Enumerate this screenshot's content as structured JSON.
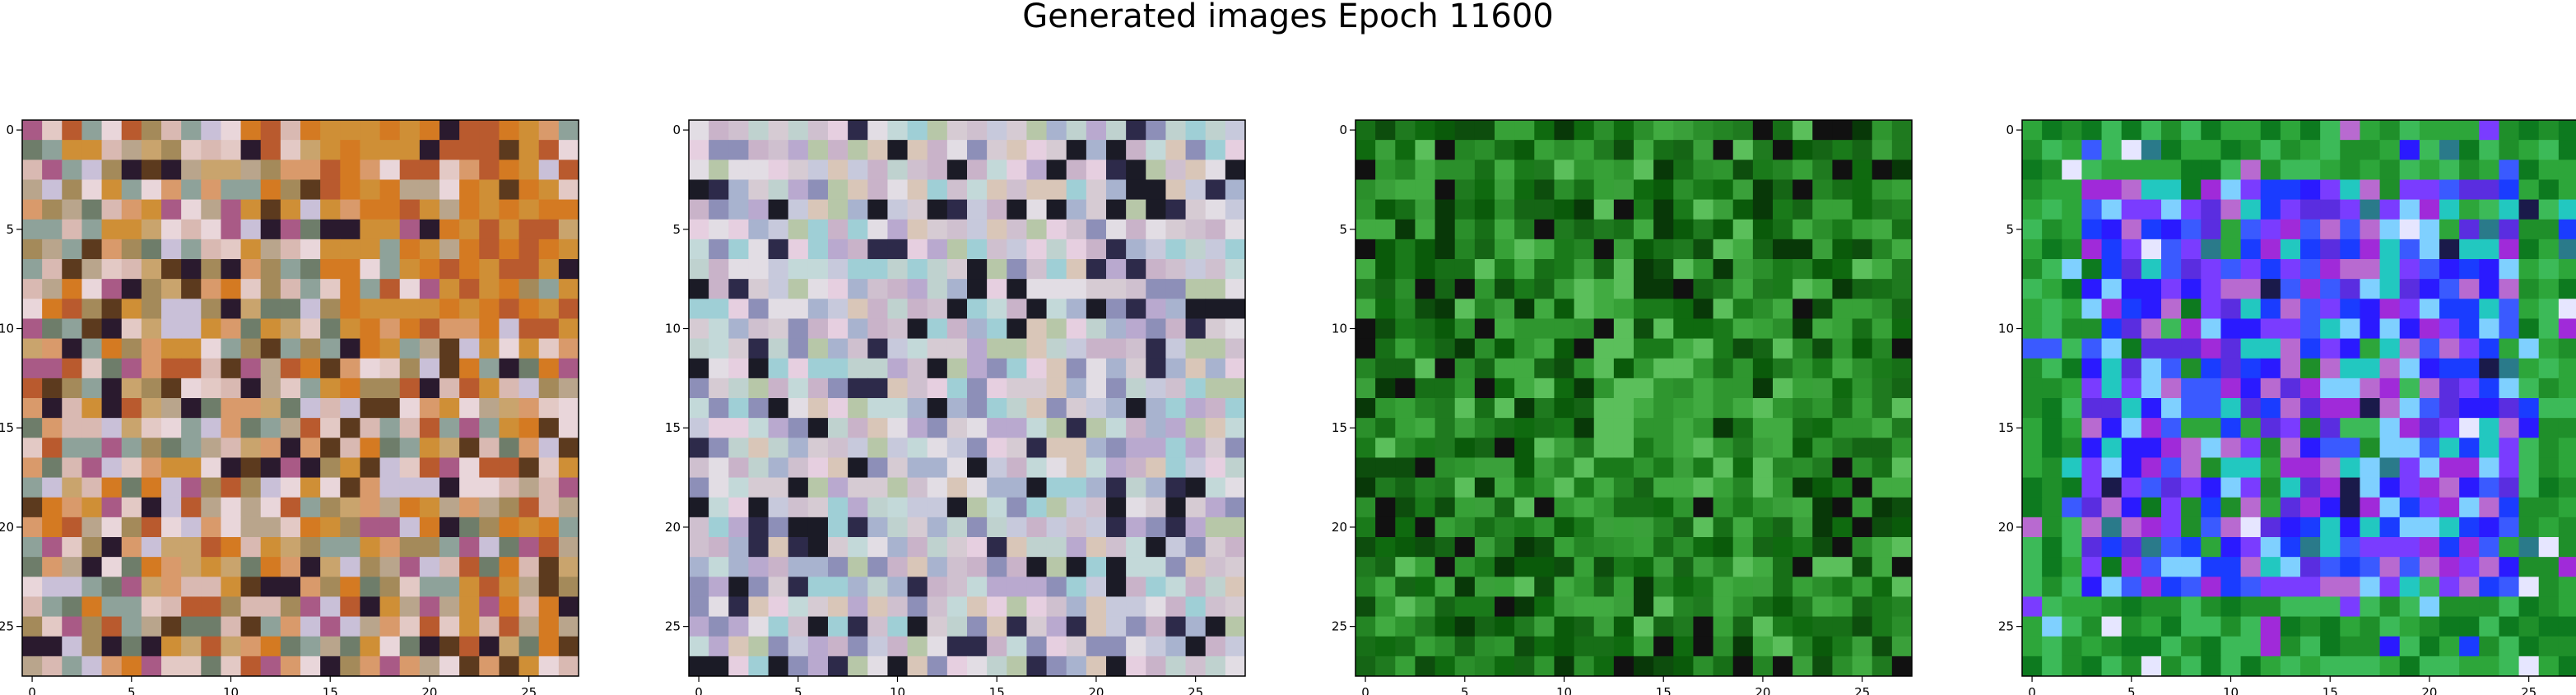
{
  "title": "Generated images Epoch 11600",
  "chart_data": [
    {
      "type": "heatmap",
      "panel": 1,
      "grid": [
        28,
        28
      ],
      "xticks": [
        "0",
        "5",
        "10",
        "15",
        "20",
        "25"
      ],
      "yticks": [
        "0",
        "5",
        "10",
        "15",
        "20",
        "25"
      ],
      "palette": [
        "#d9b9b2",
        "#c9a46d",
        "#d99a6b",
        "#a48a5a",
        "#e3c9c5",
        "#b9a58c",
        "#cf8f36",
        "#d47a22",
        "#b95a2e",
        "#5c3a1e",
        "#8ea29a",
        "#c9c0d8",
        "#6e7d6a",
        "#e9d6da",
        "#a95a86",
        "#2a1a2e"
      ],
      "description": "warm orange/brown pixel noise concentrated top-right, pastel speckles elsewhere"
    },
    {
      "type": "heatmap",
      "panel": 2,
      "grid": [
        28,
        28
      ],
      "xticks": [
        "0",
        "5",
        "10",
        "15",
        "20",
        "25"
      ],
      "yticks": [
        "0",
        "5",
        "10",
        "15",
        "20",
        "25"
      ],
      "palette": [
        "#d6cbd3",
        "#c7c9dc",
        "#e2dde4",
        "#bfd2cf",
        "#cfc0cf",
        "#a8b3cf",
        "#d9c6b8",
        "#c3d9d9",
        "#b9a9cf",
        "#e6cfe0",
        "#8d8fb8",
        "#9fcfd6",
        "#c9b3c9",
        "#b7c7a8",
        "#2d2a4a",
        "#1b1b26"
      ],
      "description": "pale pastel pixel noise with scattered dark pixels"
    },
    {
      "type": "heatmap",
      "panel": 3,
      "grid": [
        28,
        28
      ],
      "xticks": [
        "0",
        "5",
        "10",
        "15",
        "20",
        "25"
      ],
      "yticks": [
        "0",
        "5",
        "10",
        "15",
        "20",
        "25"
      ],
      "palette": [
        "#1f7a1f",
        "#0f6a0f",
        "#2b8f2b",
        "#0a5a0a",
        "#3aa03a",
        "#176f17",
        "#248524",
        "#0d4d0d",
        "#41ab41",
        "#1a7a1a",
        "#2f962f",
        "#5bbf5b",
        "#156515",
        "#37a137",
        "#083808",
        "#111111"
      ],
      "description": "green pixel noise with lighter centre"
    },
    {
      "type": "heatmap",
      "panel": 4,
      "grid": [
        28,
        28
      ],
      "xticks": [
        "0",
        "5",
        "10",
        "15",
        "20",
        "25"
      ],
      "yticks": [
        "0",
        "5",
        "10",
        "15",
        "20",
        "25"
      ],
      "palette": [
        "#1f8f2a",
        "#2da63a",
        "#0d7a1f",
        "#3cba58",
        "#5a2de0",
        "#2a1aff",
        "#7a3cff",
        "#1a3cff",
        "#a02ad9",
        "#3a5aff",
        "#b86ad0",
        "#22c8c0",
        "#7fd0ff",
        "#e6e6ff",
        "#2a7a8a",
        "#1a1a4a"
      ],
      "description": "green border with blue/purple pixel block in the centre"
    }
  ]
}
